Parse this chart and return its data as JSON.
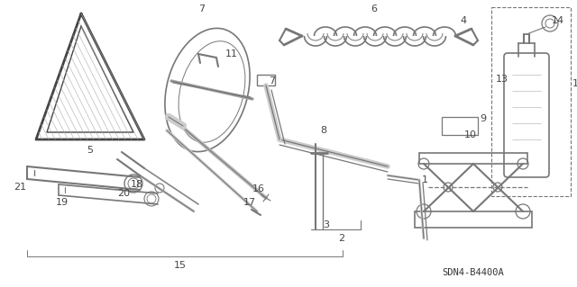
{
  "part_code": "SDN4-B4400A",
  "bg_color": "#ffffff",
  "lc": "#777777",
  "lc_dark": "#444444",
  "figsize": [
    6.4,
    3.19
  ],
  "dpi": 100
}
